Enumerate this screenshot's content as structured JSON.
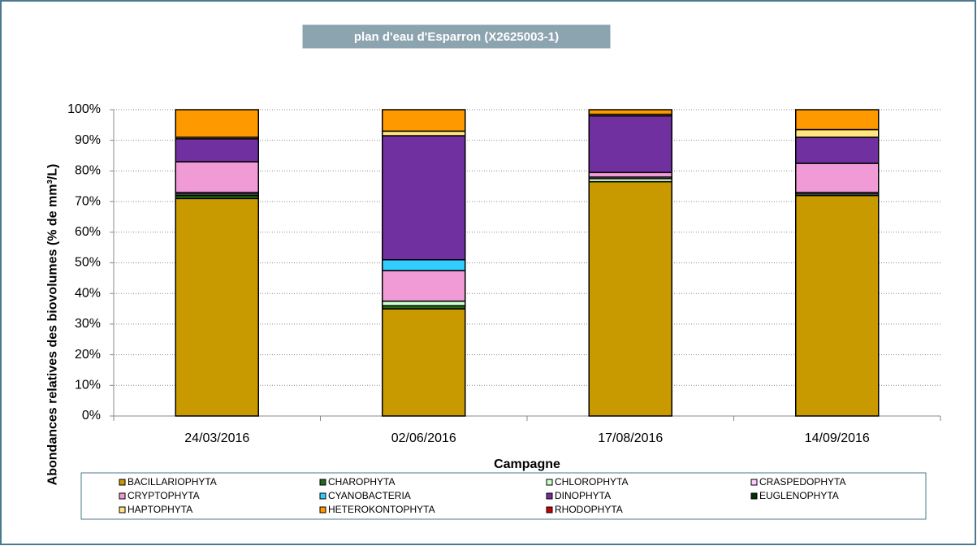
{
  "chart_data": {
    "type": "stacked_bar",
    "title": "plan d'eau d'Esparron (X2625003-1)",
    "x_label": "Campagne",
    "y_label": "Abondances relatives des biovolumes (% de mm³/L)",
    "categories": [
      "24/03/2016",
      "02/06/2016",
      "17/08/2016",
      "14/09/2016"
    ],
    "ylim": [
      0,
      100
    ],
    "yticks": [
      {
        "value": 0,
        "label": "0%"
      },
      {
        "value": 10,
        "label": "10%"
      },
      {
        "value": 20,
        "label": "20%"
      },
      {
        "value": 30,
        "label": "30%"
      },
      {
        "value": 40,
        "label": "40%"
      },
      {
        "value": 50,
        "label": "50%"
      },
      {
        "value": 60,
        "label": "60%"
      },
      {
        "value": 70,
        "label": "70%"
      },
      {
        "value": 80,
        "label": "80%"
      },
      {
        "value": 90,
        "label": "90%"
      },
      {
        "value": 100,
        "label": "100%"
      }
    ],
    "grid": true,
    "legend": "bottom",
    "series": [
      {
        "name": "BACILLARIOPHYTA",
        "color": "#c99a00",
        "values": [
          71,
          35,
          76.5,
          72
        ]
      },
      {
        "name": "CHAROPHYTA",
        "color": "#1f6b1f",
        "values": [
          1,
          1,
          0,
          0
        ]
      },
      {
        "name": "CHLOROPHYTA",
        "color": "#ccffcc",
        "values": [
          0.5,
          1.5,
          1,
          0.5
        ]
      },
      {
        "name": "CRASPEDOPHYTA",
        "color": "#ffccff",
        "values": [
          0.5,
          0,
          0.5,
          0.5
        ]
      },
      {
        "name": "CRYPTOPHYTA",
        "color": "#f09bd6",
        "values": [
          10,
          10,
          1.5,
          9.5
        ]
      },
      {
        "name": "CYANOBACTERIA",
        "color": "#33ccff",
        "values": [
          0,
          3.5,
          0,
          0
        ]
      },
      {
        "name": "DINOPHYTA",
        "color": "#7030a0",
        "values": [
          7.5,
          40.5,
          18.5,
          8.5
        ]
      },
      {
        "name": "EUGLENOPHYTA",
        "color": "#003300",
        "values": [
          0,
          0,
          0,
          0
        ]
      },
      {
        "name": "HAPTOPHYTA",
        "color": "#ffe680",
        "values": [
          0.5,
          1.5,
          0.5,
          2.5
        ]
      },
      {
        "name": "HETEROKONTOPHYTA",
        "color": "#ff9900",
        "values": [
          9,
          7,
          1.5,
          6.5
        ]
      },
      {
        "name": "RHODOPHYTA",
        "color": "#cc0000",
        "values": [
          0,
          0,
          0,
          0
        ]
      }
    ]
  }
}
